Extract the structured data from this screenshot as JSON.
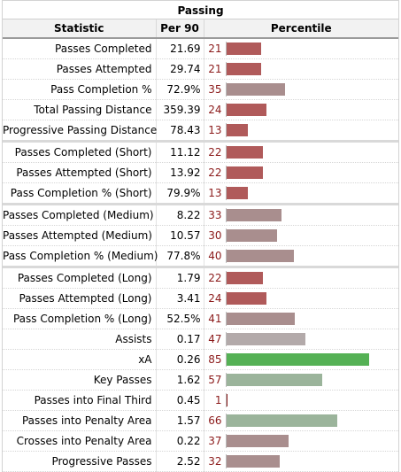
{
  "caption": "Passing",
  "headers": {
    "statistic": "Statistic",
    "per90": "Per 90",
    "percentile": "Percentile"
  },
  "colors": {
    "low": "#b05a5a",
    "mid": "#a98e8e",
    "neutral": "#b3aaaa",
    "high": "#55b155",
    "good": "#9bb49b"
  },
  "rows": [
    {
      "stat": "Passes Completed",
      "per90": "21.69",
      "pct": 21,
      "group_start": false
    },
    {
      "stat": "Passes Attempted",
      "per90": "29.74",
      "pct": 21,
      "group_start": false
    },
    {
      "stat": "Pass Completion %",
      "per90": "72.9%",
      "pct": 35,
      "group_start": false
    },
    {
      "stat": "Total Passing Distance",
      "per90": "359.39",
      "pct": 24,
      "group_start": false
    },
    {
      "stat": "Progressive Passing Distance",
      "per90": "78.43",
      "pct": 13,
      "group_start": false
    },
    {
      "stat": "Passes Completed (Short)",
      "per90": "11.12",
      "pct": 22,
      "group_start": true
    },
    {
      "stat": "Passes Attempted (Short)",
      "per90": "13.92",
      "pct": 22,
      "group_start": false
    },
    {
      "stat": "Pass Completion % (Short)",
      "per90": "79.9%",
      "pct": 13,
      "group_start": false
    },
    {
      "stat": "Passes Completed (Medium)",
      "per90": "8.22",
      "pct": 33,
      "group_start": true
    },
    {
      "stat": "Passes Attempted (Medium)",
      "per90": "10.57",
      "pct": 30,
      "group_start": false
    },
    {
      "stat": "Pass Completion % (Medium)",
      "per90": "77.8%",
      "pct": 40,
      "group_start": false
    },
    {
      "stat": "Passes Completed (Long)",
      "per90": "1.79",
      "pct": 22,
      "group_start": true
    },
    {
      "stat": "Passes Attempted (Long)",
      "per90": "3.41",
      "pct": 24,
      "group_start": false
    },
    {
      "stat": "Pass Completion % (Long)",
      "per90": "52.5%",
      "pct": 41,
      "group_start": false
    },
    {
      "stat": "Assists",
      "per90": "0.17",
      "pct": 47,
      "group_start": false
    },
    {
      "stat": "xA",
      "per90": "0.26",
      "pct": 85,
      "group_start": false
    },
    {
      "stat": "Key Passes",
      "per90": "1.62",
      "pct": 57,
      "group_start": false
    },
    {
      "stat": "Passes into Final Third",
      "per90": "0.45",
      "pct": 1,
      "group_start": false
    },
    {
      "stat": "Passes into Penalty Area",
      "per90": "1.57",
      "pct": 66,
      "group_start": false
    },
    {
      "stat": "Crosses into Penalty Area",
      "per90": "0.22",
      "pct": 37,
      "group_start": false
    },
    {
      "stat": "Progressive Passes",
      "per90": "2.52",
      "pct": 32,
      "group_start": false
    }
  ]
}
